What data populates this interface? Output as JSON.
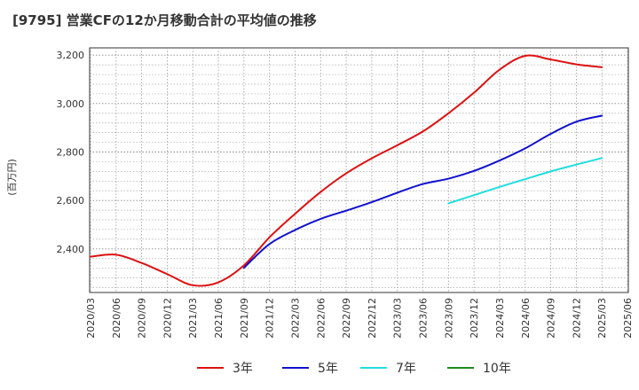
{
  "chart_data": {
    "type": "line",
    "title": "[9795]  営業CFの12か月移動合計の平均値の推移",
    "ylabel": "(百万円)",
    "xlabel": "",
    "grid": true,
    "legend_position": "bottom",
    "ylim": [
      2220,
      3230
    ],
    "y_ticks": [
      2400,
      2600,
      2800,
      3000,
      3200
    ],
    "y_tick_labels": [
      "2,400",
      "2,600",
      "2,800",
      "3,000",
      "3,200"
    ],
    "x_ticks": [
      "2020/03",
      "2020/06",
      "2020/09",
      "2020/12",
      "2021/03",
      "2021/06",
      "2021/09",
      "2021/12",
      "2022/03",
      "2022/06",
      "2022/09",
      "2022/12",
      "2023/03",
      "2023/06",
      "2023/09",
      "2023/12",
      "2024/03",
      "2024/06",
      "2024/09",
      "2024/12",
      "2025/03",
      "2025/06"
    ],
    "series": [
      {
        "name": "3年",
        "color": "#dd1111",
        "x": [
          "2020/03",
          "2020/06",
          "2020/09",
          "2020/12",
          "2021/03",
          "2021/06",
          "2021/09",
          "2021/12",
          "2022/03",
          "2022/06",
          "2022/09",
          "2022/12",
          "2023/03",
          "2023/06",
          "2023/09",
          "2023/12",
          "2024/03",
          "2024/06",
          "2024/09",
          "2024/12",
          "2025/03"
        ],
        "values": [
          2368,
          2376,
          2342,
          2296,
          2250,
          2262,
          2332,
          2448,
          2545,
          2635,
          2712,
          2774,
          2828,
          2885,
          2960,
          3045,
          3140,
          3197,
          3182,
          3162,
          3150
        ]
      },
      {
        "name": "5年",
        "color": "#1111cc",
        "x": [
          "2021/09",
          "2021/12",
          "2022/03",
          "2022/06",
          "2022/09",
          "2022/12",
          "2023/03",
          "2023/06",
          "2023/09",
          "2023/12",
          "2024/03",
          "2024/06",
          "2024/09",
          "2024/12",
          "2025/03"
        ],
        "values": [
          2322,
          2420,
          2478,
          2524,
          2558,
          2593,
          2632,
          2668,
          2690,
          2722,
          2765,
          2815,
          2875,
          2925,
          2950
        ]
      },
      {
        "name": "7年",
        "color": "#22dddd",
        "x": [
          "2023/09",
          "2023/12",
          "2024/03",
          "2024/06",
          "2024/09",
          "2024/12",
          "2025/03"
        ],
        "values": [
          2588,
          2622,
          2656,
          2688,
          2720,
          2748,
          2775
        ]
      },
      {
        "name": "10年",
        "color": "#228822",
        "x": [],
        "values": []
      }
    ]
  }
}
